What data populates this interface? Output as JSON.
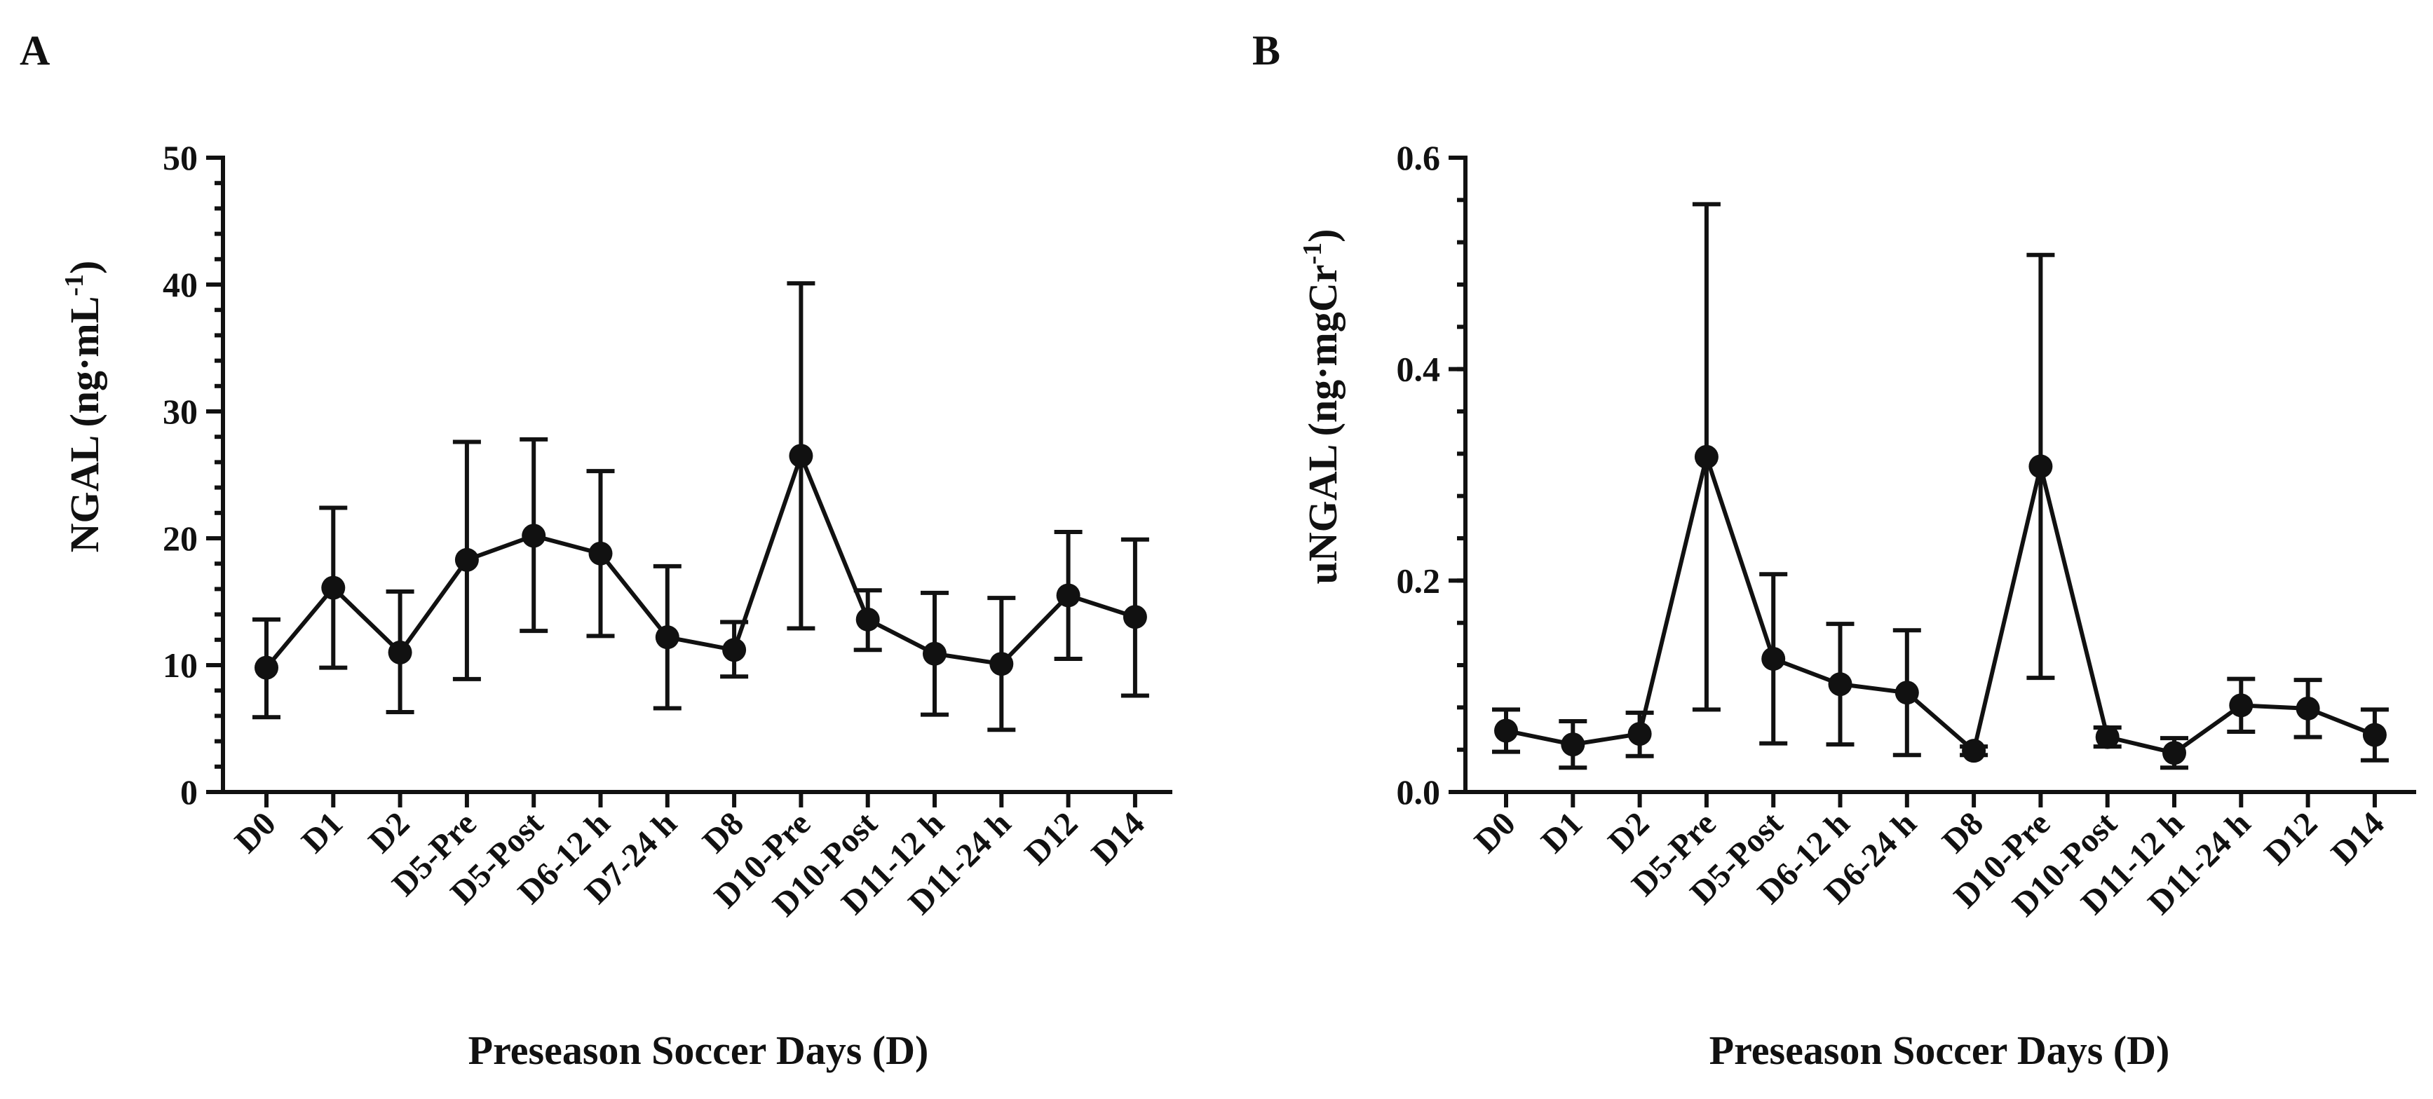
{
  "chart_data": [
    {
      "panel": "A",
      "type": "line",
      "xlabel": "Preseason Soccer Days (D)",
      "ylabel": "NGAL (ng·mL",
      "ylabel_sup": "-1",
      "ylabel_end": ")",
      "ylim": [
        0,
        50
      ],
      "yticks": [
        0,
        10,
        20,
        30,
        40,
        50
      ],
      "ytick_labels": [
        "0",
        "10",
        "20",
        "30",
        "40",
        "50"
      ],
      "minor_step": 2,
      "categories": [
        "D0",
        "D1",
        "D2",
        "D5-Pre",
        "D5-Post",
        "D6-12 h",
        "D7-24 h",
        "D8",
        "D10-Pre",
        "D10-Post",
        "D11-12 h",
        "D11-24 h",
        "D12",
        "D14"
      ],
      "values": [
        9.8,
        16.1,
        11.0,
        18.3,
        20.2,
        18.8,
        12.2,
        11.2,
        26.5,
        13.6,
        10.9,
        10.1,
        15.5,
        13.8
      ],
      "err_upper": [
        13.6,
        22.4,
        15.8,
        27.6,
        27.8,
        25.3,
        17.8,
        13.4,
        40.1,
        15.9,
        15.7,
        15.3,
        20.5,
        19.9
      ],
      "err_lower": [
        5.9,
        9.8,
        6.3,
        8.9,
        12.7,
        12.3,
        6.6,
        9.1,
        12.9,
        11.2,
        6.1,
        4.9,
        10.5,
        7.6
      ]
    },
    {
      "panel": "B",
      "type": "line",
      "xlabel": "Preseason Soccer Days (D)",
      "ylabel": "uNGAL (ng·mgCr",
      "ylabel_sup": "-1",
      "ylabel_end": ")",
      "ylim": [
        0,
        0.6
      ],
      "yticks": [
        0,
        0.2,
        0.4,
        0.6
      ],
      "ytick_labels": [
        "0.0",
        "0.2",
        "0.4",
        "0.6"
      ],
      "minor_step": 0.04,
      "categories": [
        "D0",
        "D1",
        "D2",
        "D5-Pre",
        "D5-Post",
        "D6-12 h",
        "D6-24 h",
        "D8",
        "D10-Pre",
        "D10-Post",
        "D11-12 h",
        "D11-24 h",
        "D12",
        "D14"
      ],
      "values": [
        0.058,
        0.045,
        0.055,
        0.317,
        0.126,
        0.102,
        0.094,
        0.039,
        0.308,
        0.052,
        0.037,
        0.082,
        0.079,
        0.054
      ],
      "err_upper": [
        0.078,
        0.067,
        0.075,
        0.556,
        0.206,
        0.159,
        0.153,
        0.043,
        0.508,
        0.061,
        0.051,
        0.107,
        0.106,
        0.078
      ],
      "err_lower": [
        0.038,
        0.023,
        0.034,
        0.078,
        0.046,
        0.045,
        0.035,
        0.035,
        0.108,
        0.043,
        0.023,
        0.057,
        0.052,
        0.03
      ]
    }
  ]
}
